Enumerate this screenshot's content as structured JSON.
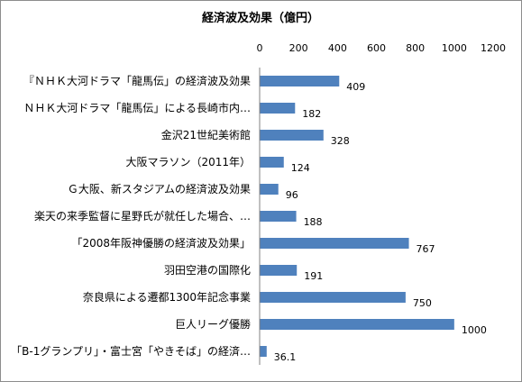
{
  "chart_data": {
    "type": "bar",
    "orientation": "horizontal",
    "title": "経済波及効果（億円）",
    "xlabel": "",
    "ylabel": "",
    "xlim": [
      0,
      1200
    ],
    "xticks": [
      "0",
      "200",
      "400",
      "600",
      "800",
      "1000",
      "1200"
    ],
    "x_axis_position": "top",
    "grid": false,
    "legend": "none",
    "bar_color": "#4f81bd",
    "categories": [
      "『ＮＨＫ大河ドラマ「龍馬伝」の経済波及効果",
      "ＮＨＫ大河ドラマ「龍馬伝」による長崎市内…",
      "金沢21世紀美術館",
      "大阪マラソン（2011年）",
      "Ｇ大阪、新スタジアムの経済波及効果",
      "楽天の来季監督に星野氏が就任した場合、…",
      "「2008年阪神優勝の経済波及効果」",
      "羽田空港の国際化",
      "奈良県による遷都1300年記念事業",
      "巨人リーグ優勝",
      "「B-1グランプリ」・富士宮「やきそば」の経済…"
    ],
    "values": [
      409,
      182,
      328,
      124,
      96,
      188,
      767,
      191,
      750,
      1000,
      36.1
    ],
    "value_labels": [
      "409",
      "182",
      "328",
      "124",
      "96",
      "188",
      "767",
      "191",
      "750",
      "1000",
      "36.1"
    ]
  }
}
